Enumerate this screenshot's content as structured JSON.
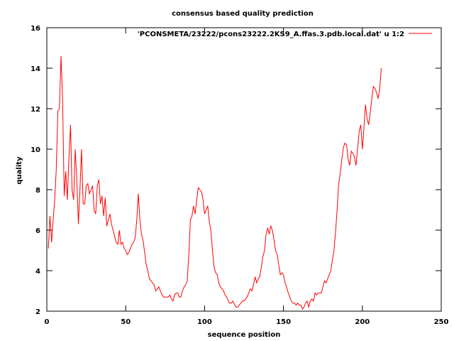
{
  "chart_data": {
    "type": "line",
    "title": "consensus based quality prediction",
    "xlabel": "sequence position",
    "ylabel": "quality",
    "xlim": [
      0,
      250
    ],
    "ylim": [
      2,
      16
    ],
    "xticks": [
      0,
      50,
      100,
      150,
      200,
      250
    ],
    "yticks": [
      2,
      4,
      6,
      8,
      10,
      12,
      14,
      16
    ],
    "grid": false,
    "legend_position": "top-right",
    "series": [
      {
        "name": "'PCONSMETA/23222/pcons23222.2KS9_A.ffas.3.pdb.local.dat' u 1:2",
        "color": "#ff0000",
        "x_start": 1,
        "values": [
          5.1,
          6.7,
          5.4,
          6.5,
          7.5,
          9.0,
          11.9,
          12.0,
          14.6,
          12.5,
          7.7,
          8.9,
          7.5,
          9.5,
          11.2,
          8.0,
          7.5,
          10.0,
          8.5,
          6.3,
          8.0,
          10.0,
          7.3,
          7.3,
          8.2,
          8.3,
          7.8,
          8.0,
          8.2,
          7.0,
          6.8,
          8.2,
          8.5,
          7.3,
          7.7,
          6.7,
          7.6,
          6.2,
          6.5,
          6.8,
          6.3,
          6.0,
          5.7,
          5.4,
          5.3,
          6.0,
          5.3,
          5.4,
          5.1,
          5.0,
          4.8,
          4.9,
          5.1,
          5.3,
          5.4,
          5.6,
          6.5,
          7.8,
          6.5,
          5.8,
          5.5,
          4.9,
          4.3,
          4.0,
          3.6,
          3.5,
          3.4,
          3.3,
          3.0,
          3.1,
          3.2,
          3.0,
          2.8,
          2.7,
          2.7,
          2.7,
          2.7,
          2.8,
          2.6,
          2.5,
          2.8,
          2.9,
          2.9,
          2.7,
          2.7,
          3.0,
          3.2,
          3.3,
          3.5,
          4.8,
          6.5,
          6.7,
          7.2,
          6.8,
          7.5,
          8.1,
          8.0,
          7.9,
          7.5,
          6.8,
          7.0,
          7.2,
          6.4,
          6.0,
          5.0,
          4.2,
          3.9,
          3.8,
          3.4,
          3.2,
          3.1,
          3.0,
          2.8,
          2.7,
          2.5,
          2.4,
          2.4,
          2.5,
          2.3,
          2.2,
          2.2,
          2.3,
          2.4,
          2.5,
          2.5,
          2.6,
          2.7,
          2.9,
          3.1,
          3.0,
          3.3,
          3.7,
          3.4,
          3.6,
          3.7,
          4.2,
          4.7,
          5.0,
          5.8,
          6.1,
          5.8,
          6.2,
          6.0,
          5.5,
          5.0,
          4.8,
          4.3,
          3.8,
          3.9,
          3.8,
          3.4,
          3.2,
          2.9,
          2.7,
          2.5,
          2.4,
          2.4,
          2.3,
          2.4,
          2.3,
          2.3,
          2.1,
          2.2,
          2.4,
          2.5,
          2.2,
          2.5,
          2.6,
          2.5,
          2.9,
          2.8,
          2.9,
          2.9,
          2.9,
          3.2,
          3.5,
          3.4,
          3.6,
          3.8,
          4.0,
          4.5,
          5.0,
          5.9,
          7.0,
          8.3,
          8.8,
          9.5,
          10.1,
          10.3,
          10.2,
          9.5,
          9.2,
          9.9,
          9.8,
          9.6,
          9.2,
          10.0,
          10.9,
          11.2,
          10.0,
          11.0,
          12.2,
          11.5,
          11.2,
          11.8,
          12.5,
          13.1,
          13.0,
          12.8,
          12.5,
          13.0,
          14.0
        ]
      }
    ]
  }
}
